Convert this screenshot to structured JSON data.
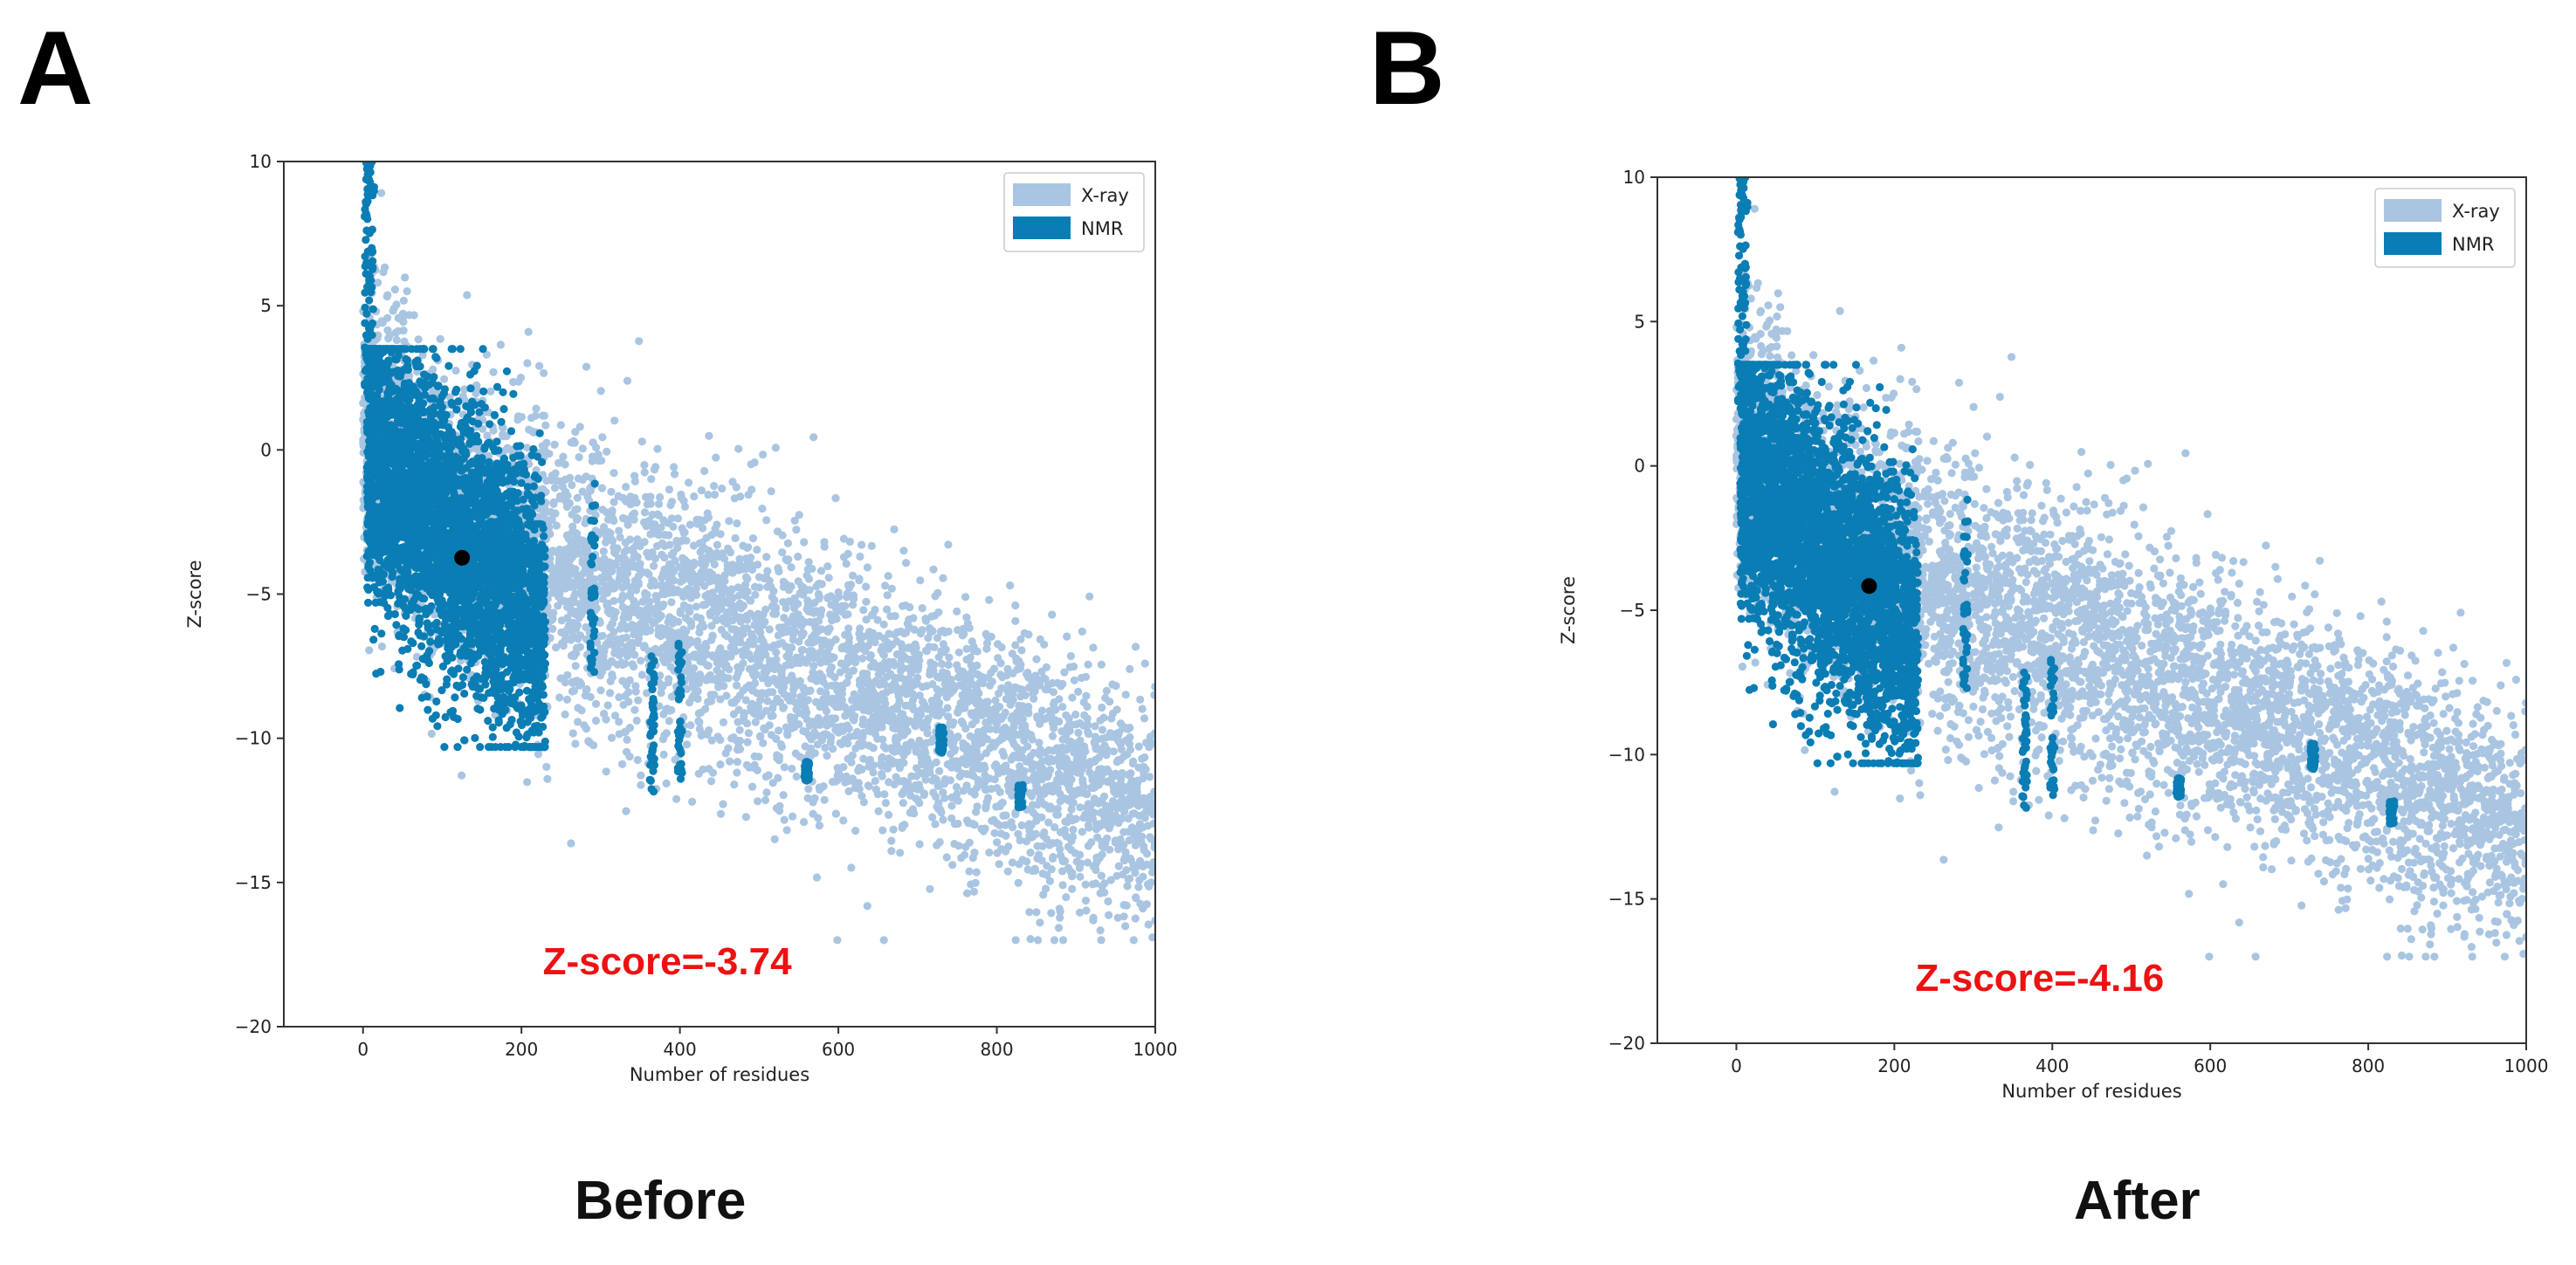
{
  "figure": {
    "panel_a_letter": "A",
    "panel_b_letter": "B",
    "caption_a": "Before",
    "caption_b": "After"
  },
  "colors": {
    "xray": "#a9c5e1",
    "nmr": "#0a7db4",
    "marker": "#000000",
    "annotation": "#ee1111"
  },
  "chart_data": [
    {
      "type": "scatter",
      "title": "",
      "xlabel": "Number of residues",
      "ylabel": "Z-score",
      "xlim": [
        -100,
        1000
      ],
      "ylim": [
        -20,
        10
      ],
      "xticks": [
        0,
        200,
        400,
        600,
        800,
        1000
      ],
      "xtick_labels": [
        "0",
        "200",
        "400",
        "600",
        "800",
        "1000"
      ],
      "yticks": [
        10,
        5,
        0,
        -5,
        -10,
        -15,
        -20
      ],
      "ytick_labels": [
        "10",
        "5",
        "0",
        "−5",
        "−10",
        "−15",
        "−20"
      ],
      "legend": {
        "position": "top-right",
        "entries": [
          {
            "label": "X-ray",
            "color": "#a9c5e1"
          },
          {
            "label": "NMR",
            "color": "#0a7db4"
          }
        ]
      },
      "series": [
        {
          "name": "X-ray",
          "description": "PDB X-ray structures distribution"
        },
        {
          "name": "NMR",
          "description": "PDB NMR structures distribution"
        }
      ],
      "highlight_point": {
        "x": 125,
        "y": -3.74
      },
      "annotation": "Z-score=-3.74"
    },
    {
      "type": "scatter",
      "title": "",
      "xlabel": "Number of residues",
      "ylabel": "Z-score",
      "xlim": [
        -100,
        1000
      ],
      "ylim": [
        -20,
        10
      ],
      "xticks": [
        0,
        200,
        400,
        600,
        800,
        1000
      ],
      "xtick_labels": [
        "0",
        "200",
        "400",
        "600",
        "800",
        "1000"
      ],
      "yticks": [
        10,
        5,
        0,
        -5,
        -10,
        -15,
        -20
      ],
      "ytick_labels": [
        "10",
        "5",
        "0",
        "−5",
        "−10",
        "−15",
        "−20"
      ],
      "legend": {
        "position": "top-right",
        "entries": [
          {
            "label": "X-ray",
            "color": "#a9c5e1"
          },
          {
            "label": "NMR",
            "color": "#0a7db4"
          }
        ]
      },
      "series": [
        {
          "name": "X-ray",
          "description": "PDB X-ray structures distribution"
        },
        {
          "name": "NMR",
          "description": "PDB NMR structures distribution"
        }
      ],
      "highlight_point": {
        "x": 168,
        "y": -4.16
      },
      "annotation": "Z-score=-4.16"
    }
  ]
}
